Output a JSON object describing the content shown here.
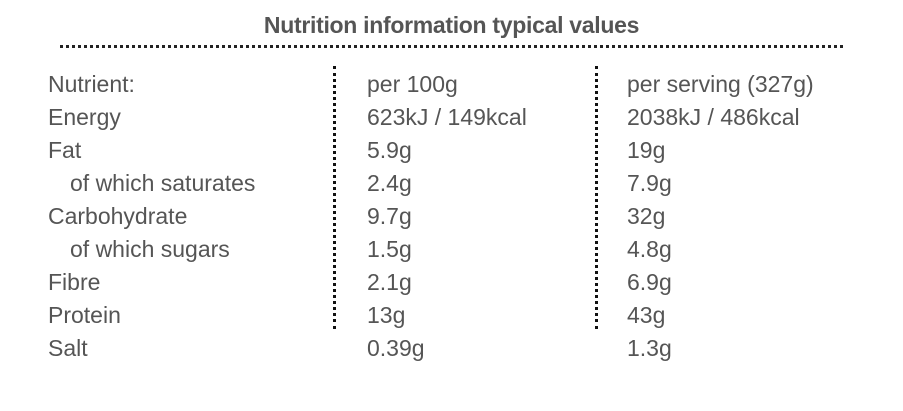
{
  "title": "Nutrition information typical values",
  "header": {
    "nutrient": "Nutrient:",
    "per_100g": "per 100g",
    "per_serving": "per serving (327g)"
  },
  "rows": [
    {
      "name": "Energy",
      "per_100g": "623kJ / 149kcal",
      "per_serving": "2038kJ / 486kcal",
      "sub": false
    },
    {
      "name": "Fat",
      "per_100g": "5.9g",
      "per_serving": "19g",
      "sub": false
    },
    {
      "name": "of which saturates",
      "per_100g": "2.4g",
      "per_serving": "7.9g",
      "sub": true
    },
    {
      "name": "Carbohydrate",
      "per_100g": "9.7g",
      "per_serving": "32g",
      "sub": false
    },
    {
      "name": "of which sugars",
      "per_100g": "1.5g",
      "per_serving": "4.8g",
      "sub": true
    },
    {
      "name": "Fibre",
      "per_100g": "2.1g",
      "per_serving": "6.9g",
      "sub": false
    },
    {
      "name": "Protein",
      "per_100g": "13g",
      "per_serving": "43g",
      "sub": false
    },
    {
      "name": "Salt",
      "per_100g": "0.39g",
      "per_serving": "1.3g",
      "sub": false
    }
  ]
}
